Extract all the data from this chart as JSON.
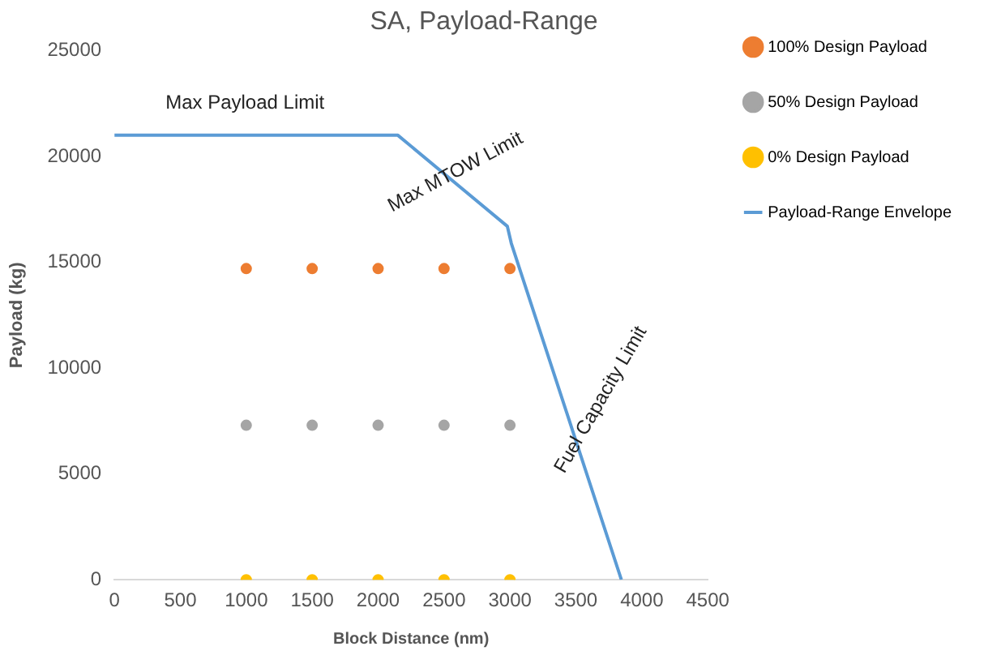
{
  "chart_data": {
    "type": "scatter",
    "title": "SA, Payload-Range",
    "xlabel": "Block Distance (nm)",
    "ylabel": "Payload (kg)",
    "xlim": [
      0,
      4500
    ],
    "xticks": [
      0,
      500,
      1000,
      1500,
      2000,
      2500,
      3000,
      3500,
      4000,
      4500
    ],
    "ylim": [
      0,
      25000
    ],
    "yticks": [
      0,
      5000,
      10000,
      15000,
      20000,
      25000
    ],
    "grid": false,
    "legend": "right",
    "series": [
      {
        "name": "100% Design Payload",
        "color": "#ed7d31",
        "marker": "circle",
        "x": [
          1000,
          1500,
          2000,
          2500,
          3000
        ],
        "values": [
          14700,
          14700,
          14700,
          14700,
          14700
        ]
      },
      {
        "name": "50% Design Payload",
        "color": "#a5a5a5",
        "marker": "circle",
        "x": [
          1000,
          1500,
          2000,
          2500,
          3000
        ],
        "values": [
          7300,
          7300,
          7300,
          7300,
          7300
        ]
      },
      {
        "name": "0% Design Payload",
        "color": "#ffc000",
        "marker": "circle",
        "x": [
          1000,
          1500,
          2000,
          2500,
          3000
        ],
        "values": [
          0,
          0,
          0,
          0,
          0
        ]
      },
      {
        "name": "Payload-Range Envelope",
        "type": "line",
        "marker": "none",
        "color": "#5b9bd5",
        "x": [
          0,
          2150,
          2980,
          3010,
          3845
        ],
        "values": [
          21000,
          21000,
          16700,
          15900,
          0
        ]
      }
    ],
    "annotations": [
      "Max Payload Limit",
      "Max MTOW Limit",
      "Fuel Capacity Limit"
    ]
  }
}
